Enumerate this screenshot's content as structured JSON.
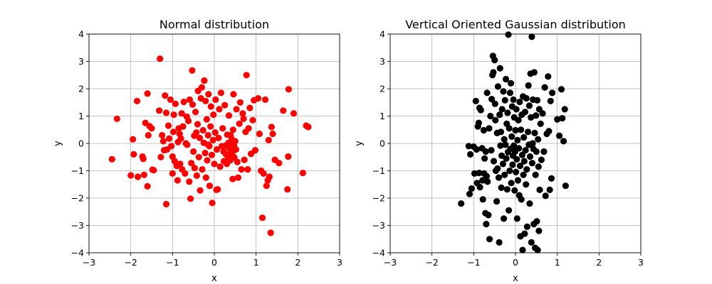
{
  "chart_data": [
    {
      "type": "scatter",
      "title": "Normal distribution",
      "xlabel": "x",
      "ylabel": "y",
      "xlim": [
        -3,
        3
      ],
      "ylim": [
        -4,
        4
      ],
      "xticks": [
        -3,
        -2,
        -1,
        0,
        1,
        2,
        3
      ],
      "yticks": [
        -4,
        -3,
        -2,
        -1,
        0,
        1,
        2,
        3,
        4
      ],
      "grid": true,
      "color": "#ff0000",
      "points": [
        [
          -2.45,
          -0.58
        ],
        [
          -2.33,
          0.9
        ],
        [
          -2.0,
          -1.17
        ],
        [
          -1.95,
          0.15
        ],
        [
          -1.93,
          -0.4
        ],
        [
          -1.85,
          1.55
        ],
        [
          -1.83,
          -1.22
        ],
        [
          -1.72,
          -0.48
        ],
        [
          -1.7,
          -0.57
        ],
        [
          -1.68,
          -1.15
        ],
        [
          -1.65,
          0.75
        ],
        [
          -1.6,
          1.82
        ],
        [
          -1.6,
          -1.57
        ],
        [
          -1.58,
          0.3
        ],
        [
          -1.55,
          0.63
        ],
        [
          -1.5,
          0.55
        ],
        [
          -1.48,
          -0.96
        ],
        [
          -1.45,
          -0.98
        ],
        [
          -1.32,
          1.2
        ],
        [
          -1.3,
          3.1
        ],
        [
          -1.28,
          -0.5
        ],
        [
          -1.25,
          0.3
        ],
        [
          -1.22,
          0.08
        ],
        [
          -1.2,
          -0.25
        ],
        [
          -1.18,
          1.75
        ],
        [
          -1.15,
          1.12
        ],
        [
          -1.15,
          -2.22
        ],
        [
          -1.13,
          -0.22
        ],
        [
          -1.1,
          0.65
        ],
        [
          -1.08,
          0.18
        ],
        [
          -1.05,
          1.6
        ],
        [
          -1.03,
          -0.1
        ],
        [
          -1.0,
          -1.1
        ],
        [
          -1.0,
          -0.48
        ],
        [
          -0.98,
          0.42
        ],
        [
          -0.97,
          1.05
        ],
        [
          -0.95,
          -0.65
        ],
        [
          -0.93,
          1.45
        ],
        [
          -0.9,
          -0.82
        ],
        [
          -0.88,
          -1.35
        ],
        [
          -0.87,
          0.05
        ],
        [
          -0.85,
          0.55
        ],
        [
          -0.83,
          0.35
        ],
        [
          -0.82,
          -0.75
        ],
        [
          -0.8,
          0.18
        ],
        [
          -0.78,
          1.1
        ],
        [
          -0.77,
          -0.95
        ],
        [
          -0.75,
          0.62
        ],
        [
          -0.73,
          1.52
        ],
        [
          -0.7,
          -1.1
        ],
        [
          -0.68,
          0.0
        ],
        [
          -0.66,
          0.98
        ],
        [
          -0.65,
          -0.05
        ],
        [
          -0.62,
          0.82
        ],
        [
          -0.6,
          -1.4
        ],
        [
          -0.59,
          1.6
        ],
        [
          -0.57,
          -2.02
        ],
        [
          -0.55,
          -0.72
        ],
        [
          -0.53,
          2.67
        ],
        [
          -0.52,
          1.42
        ],
        [
          -0.5,
          -0.3
        ],
        [
          -0.48,
          0.28
        ],
        [
          -0.47,
          -0.9
        ],
        [
          -0.45,
          1.15
        ],
        [
          -0.43,
          0.4
        ],
        [
          -0.42,
          -1.18
        ],
        [
          -0.4,
          0.7
        ],
        [
          -0.39,
          1.92
        ],
        [
          -0.37,
          -0.5
        ],
        [
          -0.35,
          0.2
        ],
        [
          -0.34,
          -1.72
        ],
        [
          -0.32,
          1.65
        ],
        [
          -0.3,
          2.05
        ],
        [
          -0.29,
          -0.95
        ],
        [
          -0.27,
          0.48
        ],
        [
          -0.25,
          0.02
        ],
        [
          -0.24,
          2.3
        ],
        [
          -0.22,
          -0.35
        ],
        [
          -0.21,
          1.55
        ],
        [
          -0.2,
          -1.25
        ],
        [
          -0.18,
          0.88
        ],
        [
          -0.17,
          -0.62
        ],
        [
          -0.15,
          0.3
        ],
        [
          -0.14,
          1.8
        ],
        [
          -0.12,
          -0.1
        ],
        [
          -0.11,
          -1.55
        ],
        [
          -0.09,
          0.62
        ],
        [
          -0.08,
          1.35
        ],
        [
          -0.06,
          -0.42
        ],
        [
          -0.05,
          -2.18
        ],
        [
          -0.03,
          0.12
        ],
        [
          -0.02,
          1.05
        ],
        [
          0.0,
          -0.75
        ],
        [
          0.02,
          0.4
        ],
        [
          0.03,
          1.6
        ],
        [
          0.05,
          -1.7
        ],
        [
          0.06,
          -0.22
        ],
        [
          0.08,
          -1.68
        ],
        [
          0.1,
          0.2
        ],
        [
          0.12,
          1.25
        ],
        [
          0.14,
          -0.85
        ],
        [
          0.16,
          1.85
        ],
        [
          0.18,
          -0.1
        ],
        [
          0.2,
          0.55
        ],
        [
          0.22,
          -0.3
        ],
        [
          0.23,
          -0.65
        ],
        [
          0.25,
          1.4
        ],
        [
          0.27,
          -0.08
        ],
        [
          0.28,
          -0.4
        ],
        [
          0.3,
          -0.75
        ],
        [
          0.31,
          0.32
        ],
        [
          0.33,
          -0.55
        ],
        [
          0.34,
          0.02
        ],
        [
          0.35,
          1.02
        ],
        [
          0.36,
          -0.18
        ],
        [
          0.38,
          -0.62
        ],
        [
          0.39,
          0.3
        ],
        [
          0.4,
          -0.28
        ],
        [
          0.41,
          -0.05
        ],
        [
          0.42,
          0.15
        ],
        [
          0.43,
          -0.4
        ],
        [
          0.44,
          -1.3
        ],
        [
          0.45,
          0.5
        ],
        [
          0.46,
          1.8
        ],
        [
          0.47,
          -0.08
        ],
        [
          0.48,
          -0.52
        ],
        [
          0.5,
          0.08
        ],
        [
          0.52,
          -0.22
        ],
        [
          0.53,
          1.25
        ],
        [
          0.55,
          -0.68
        ],
        [
          0.57,
          -1.25
        ],
        [
          0.6,
          0.72
        ],
        [
          0.62,
          1.5
        ],
        [
          0.65,
          -0.95
        ],
        [
          0.68,
          1.1
        ],
        [
          0.7,
          0.9
        ],
        [
          0.72,
          -0.6
        ],
        [
          0.75,
          0.42
        ],
        [
          0.77,
          2.5
        ],
        [
          0.8,
          -0.95
        ],
        [
          0.82,
          0.55
        ],
        [
          0.85,
          1.3
        ],
        [
          0.88,
          -0.38
        ],
        [
          0.92,
          0.85
        ],
        [
          0.95,
          1.58
        ],
        [
          0.98,
          -0.25
        ],
        [
          1.05,
          1.65
        ],
        [
          1.08,
          0.35
        ],
        [
          1.12,
          -1.0
        ],
        [
          1.15,
          -2.72
        ],
        [
          1.18,
          -1.1
        ],
        [
          1.22,
          1.6
        ],
        [
          1.25,
          -1.55
        ],
        [
          1.28,
          -1.35
        ],
        [
          1.3,
          0.12
        ],
        [
          1.32,
          -1.22
        ],
        [
          1.35,
          -3.27
        ],
        [
          1.37,
          0.6
        ],
        [
          1.4,
          0.35
        ],
        [
          1.45,
          -0.6
        ],
        [
          1.55,
          -0.72
        ],
        [
          1.65,
          1.2
        ],
        [
          1.75,
          -1.68
        ],
        [
          1.77,
          -0.48
        ],
        [
          1.78,
          1.98
        ],
        [
          1.9,
          1.1
        ],
        [
          2.12,
          -1.08
        ],
        [
          2.2,
          0.65
        ],
        [
          2.25,
          0.6
        ],
        [
          -0.15,
          -0.05
        ]
      ]
    },
    {
      "type": "scatter",
      "title": "Vertical Oriented Gaussian distribution",
      "xlabel": "x",
      "ylabel": "y",
      "xlim": [
        -3,
        3
      ],
      "ylim": [
        -4,
        4
      ],
      "xticks": [
        -3,
        -2,
        -1,
        0,
        1,
        2,
        3
      ],
      "yticks": [
        -4,
        -3,
        -2,
        -1,
        0,
        1,
        2,
        3,
        4
      ],
      "grid": true,
      "color": "#000000",
      "points": [
        [
          -1.3,
          -2.2
        ],
        [
          -1.12,
          -0.1
        ],
        [
          -1.1,
          -1.85
        ],
        [
          -1.08,
          -0.4
        ],
        [
          -1.05,
          -1.65
        ],
        [
          -1.0,
          -0.12
        ],
        [
          -0.98,
          -1.1
        ],
        [
          -0.95,
          1.55
        ],
        [
          -0.93,
          -0.22
        ],
        [
          -0.92,
          -1.45
        ],
        [
          -0.9,
          0.62
        ],
        [
          -0.88,
          0.75
        ],
        [
          -0.87,
          -1.08
        ],
        [
          -0.86,
          1.3
        ],
        [
          -0.85,
          -1.6
        ],
        [
          -0.83,
          1.22
        ],
        [
          -0.8,
          -0.18
        ],
        [
          -0.79,
          -1.35
        ],
        [
          -0.78,
          -2.05
        ],
        [
          -0.76,
          0.48
        ],
        [
          -0.75,
          -1.1
        ],
        [
          -0.74,
          -0.55
        ],
        [
          -0.72,
          -2.55
        ],
        [
          -0.71,
          -0.3
        ],
        [
          -0.7,
          -2.95
        ],
        [
          -0.69,
          -1.2
        ],
        [
          -0.68,
          1.85
        ],
        [
          -0.67,
          -1.4
        ],
        [
          -0.65,
          -2.62
        ],
        [
          -0.63,
          0.55
        ],
        [
          -0.62,
          -3.5
        ],
        [
          -0.6,
          1.0
        ],
        [
          -0.58,
          -0.25
        ],
        [
          -0.57,
          1.62
        ],
        [
          -0.55,
          2.5
        ],
        [
          -0.54,
          3.2
        ],
        [
          -0.53,
          2.6
        ],
        [
          -0.52,
          -0.65
        ],
        [
          -0.5,
          3.05
        ],
        [
          -0.49,
          1.45
        ],
        [
          -0.48,
          0.85
        ],
        [
          -0.47,
          -1.0
        ],
        [
          -0.45,
          -2.12
        ],
        [
          -0.44,
          0.38
        ],
        [
          -0.43,
          -0.92
        ],
        [
          -0.42,
          2.08
        ],
        [
          -0.4,
          -1.25
        ],
        [
          -0.39,
          -3.62
        ],
        [
          -0.38,
          1.05
        ],
        [
          -0.37,
          2.75
        ],
        [
          -0.36,
          -0.08
        ],
        [
          -0.35,
          0.42
        ],
        [
          -0.34,
          -1.62
        ],
        [
          -0.33,
          -0.45
        ],
        [
          -0.32,
          1.25
        ],
        [
          -0.3,
          -0.75
        ],
        [
          -0.29,
          1.9
        ],
        [
          -0.28,
          -2.75
        ],
        [
          -0.27,
          0.15
        ],
        [
          -0.26,
          -1.15
        ],
        [
          -0.25,
          1.58
        ],
        [
          -0.24,
          -0.05
        ],
        [
          -0.23,
          2.35
        ],
        [
          -0.22,
          -0.55
        ],
        [
          -0.21,
          0.72
        ],
        [
          -0.2,
          -1.68
        ],
        [
          -0.19,
          1.12
        ],
        [
          -0.18,
          -0.32
        ],
        [
          -0.17,
          3.98
        ],
        [
          -0.16,
          -2.45
        ],
        [
          -0.15,
          0.55
        ],
        [
          -0.14,
          -1.0
        ],
        [
          -0.13,
          1.85
        ],
        [
          -0.12,
          -0.2
        ],
        [
          -0.11,
          2.2
        ],
        [
          -0.1,
          -1.45
        ],
        [
          -0.09,
          0.25
        ],
        [
          -0.08,
          1.35
        ],
        [
          -0.07,
          -0.78
        ],
        [
          -0.06,
          -0.45
        ],
        [
          -0.05,
          1.6
        ],
        [
          -0.04,
          -0.08
        ],
        [
          -0.03,
          0.95
        ],
        [
          -0.02,
          -1.72
        ],
        [
          -0.01,
          -0.3
        ],
        [
          0.0,
          0.48
        ],
        [
          0.01,
          -1.05
        ],
        [
          0.02,
          1.25
        ],
        [
          0.03,
          -0.58
        ],
        [
          0.04,
          -2.75
        ],
        [
          0.05,
          0.12
        ],
        [
          0.06,
          -1.35
        ],
        [
          0.07,
          0.85
        ],
        [
          0.08,
          -0.18
        ],
        [
          0.09,
          -1.9
        ],
        [
          0.1,
          1.52
        ],
        [
          0.11,
          -0.82
        ],
        [
          0.12,
          -3.4
        ],
        [
          0.13,
          0.5
        ],
        [
          0.14,
          -2.05
        ],
        [
          0.15,
          1.05
        ],
        [
          0.16,
          -0.42
        ],
        [
          0.17,
          -3.9
        ],
        [
          0.18,
          1.72
        ],
        [
          0.19,
          -1.15
        ],
        [
          0.2,
          0.22
        ],
        [
          0.21,
          -0.65
        ],
        [
          0.22,
          -3.3
        ],
        [
          0.23,
          1.15
        ],
        [
          0.24,
          -0.25
        ],
        [
          0.25,
          -1.5
        ],
        [
          0.26,
          1.65
        ],
        [
          0.27,
          -0.95
        ],
        [
          0.28,
          -3.05
        ],
        [
          0.3,
          0.42
        ],
        [
          0.31,
          2.12
        ],
        [
          0.32,
          -0.05
        ],
        [
          0.33,
          1.38
        ],
        [
          0.34,
          -2.2
        ],
        [
          0.35,
          -0.48
        ],
        [
          0.36,
          2.55
        ],
        [
          0.37,
          0.95
        ],
        [
          0.38,
          -3.62
        ],
        [
          0.39,
          3.9
        ],
        [
          0.4,
          -0.72
        ],
        [
          0.41,
          0.0
        ],
        [
          0.42,
          1.6
        ],
        [
          0.43,
          -0.2
        ],
        [
          0.44,
          -2.95
        ],
        [
          0.45,
          2.6
        ],
        [
          0.46,
          0.38
        ],
        [
          0.47,
          -3.82
        ],
        [
          0.48,
          -1.15
        ],
        [
          0.49,
          1.02
        ],
        [
          0.5,
          -0.3
        ],
        [
          0.51,
          -2.85
        ],
        [
          0.52,
          1.58
        ],
        [
          0.53,
          -3.9
        ],
        [
          0.54,
          0.15
        ],
        [
          0.55,
          -0.85
        ],
        [
          0.56,
          -3.2
        ],
        [
          0.57,
          1.25
        ],
        [
          0.58,
          -1.7
        ],
        [
          0.6,
          0.72
        ],
        [
          0.62,
          -0.6
        ],
        [
          0.65,
          1.1
        ],
        [
          0.68,
          -0.3
        ],
        [
          0.7,
          2.05
        ],
        [
          0.72,
          -1.92
        ],
        [
          0.75,
          0.35
        ],
        [
          0.78,
          2.45
        ],
        [
          0.8,
          0.45
        ],
        [
          0.82,
          -1.7
        ],
        [
          0.84,
          1.55
        ],
        [
          0.86,
          -1.28
        ],
        [
          0.88,
          1.85
        ],
        [
          1.0,
          0.88
        ],
        [
          1.05,
          0.28
        ],
        [
          1.1,
          1.98
        ],
        [
          1.12,
          0.92
        ],
        [
          1.15,
          0.08
        ],
        [
          1.18,
          1.25
        ],
        [
          1.2,
          -1.55
        ]
      ]
    }
  ]
}
